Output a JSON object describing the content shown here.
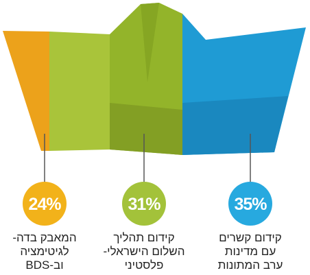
{
  "chart_data": {
    "type": "pictogram",
    "categories": [
      "המאבק בדה-\nלגיטימציה\nוב-BDS",
      "קידום תהליך\nהשלום הישראלי-\nפלסטיני",
      "קידום קשרים\nעם מדינות\nערב המתונות"
    ],
    "values": [
      24,
      31,
      35
    ],
    "value_labels": [
      "24%",
      "31%",
      "35%"
    ],
    "colors": [
      "#f2b21a",
      "#a3c23a",
      "#27a9df"
    ]
  }
}
